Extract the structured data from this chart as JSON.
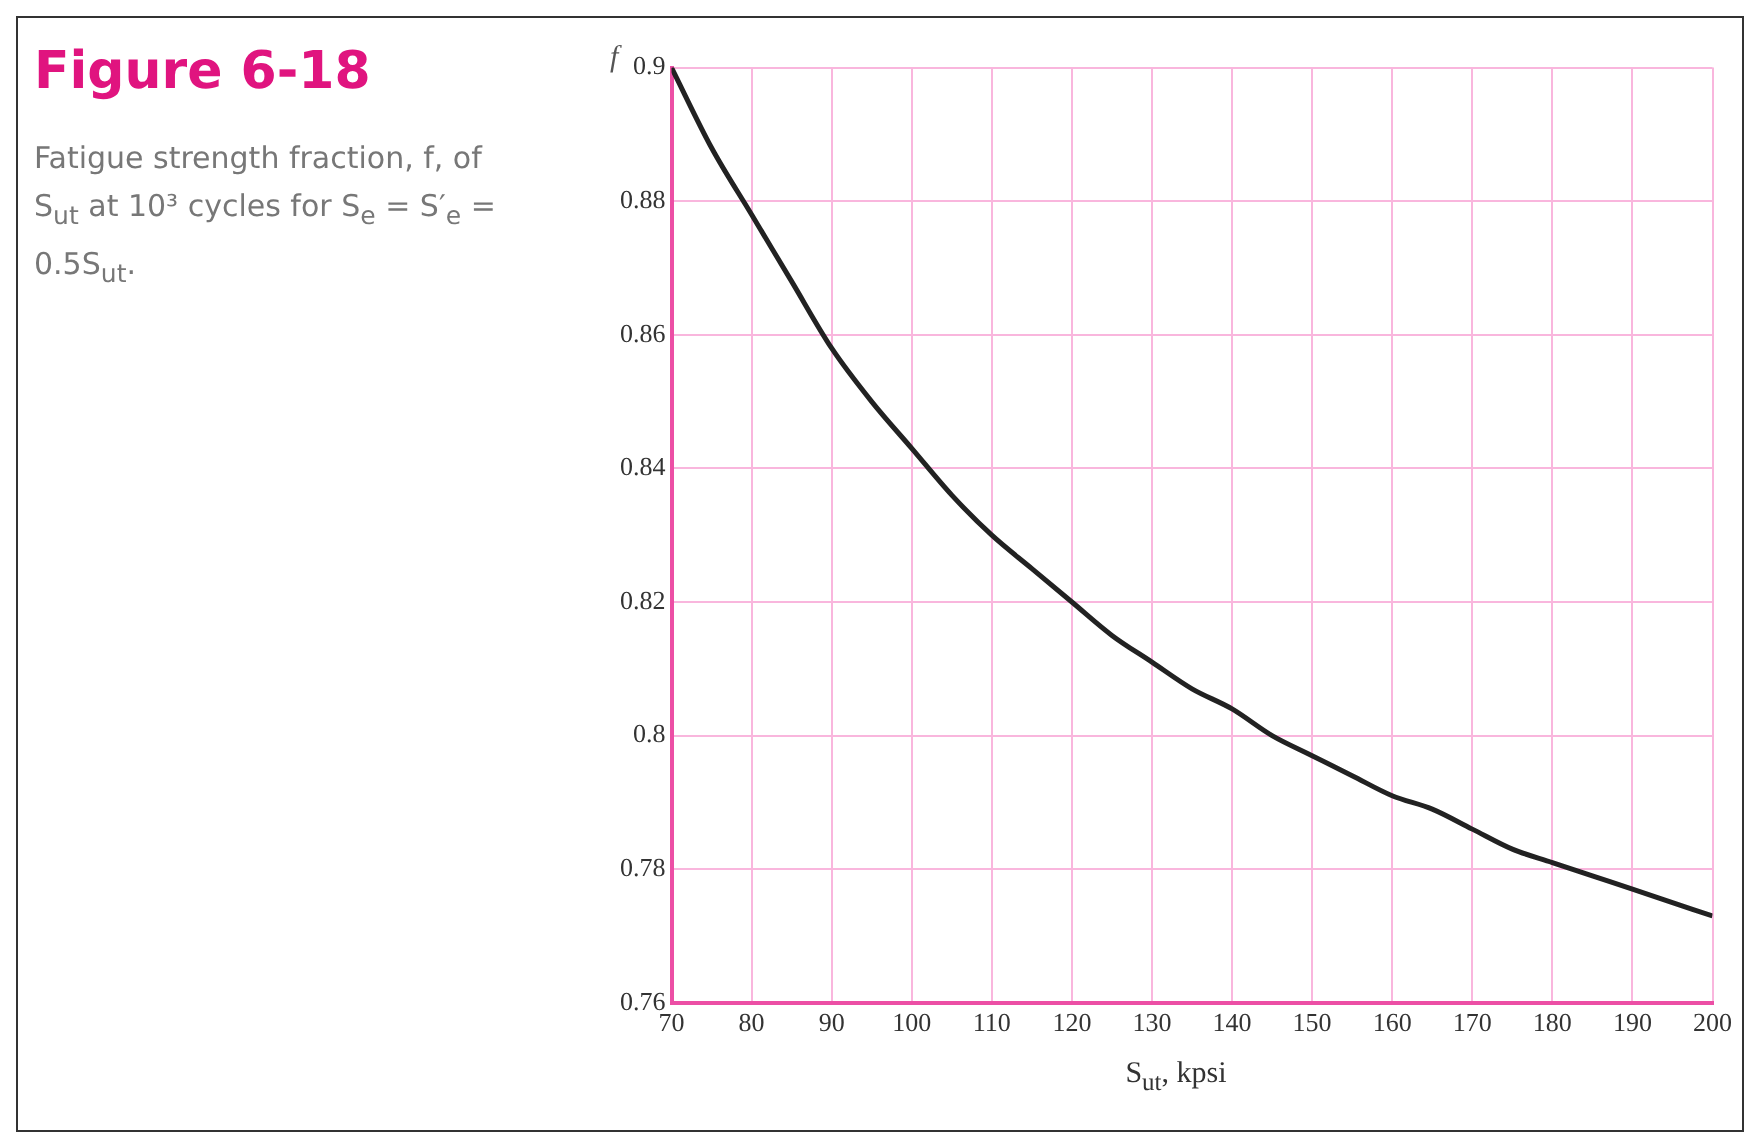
{
  "chart_data": {
    "type": "line",
    "title": "Figure 6-18",
    "annotations": [
      "Fatigue strength fraction, f, of S$_{ut}$ at 10³ cycles for S$_{e}$ = S′$_{e}$ = 0.5S$_{ut}$."
    ],
    "xlabel": "S$_{ut}$, kpsi",
    "ylabel": "f",
    "x": [
      70,
      75,
      80,
      85,
      90,
      95,
      100,
      105,
      110,
      115,
      120,
      125,
      130,
      135,
      140,
      145,
      150,
      155,
      160,
      165,
      170,
      175,
      180,
      185,
      190,
      195,
      200
    ],
    "series": [
      {
        "color": "#222222",
        "values": [
          0.9,
          0.888,
          0.878,
          0.868,
          0.858,
          0.85,
          0.843,
          0.836,
          0.83,
          0.825,
          0.82,
          0.815,
          0.811,
          0.807,
          0.804,
          0.8,
          0.797,
          0.794,
          0.791,
          0.789,
          0.786,
          0.783,
          0.781,
          0.779,
          0.777,
          0.775,
          0.773
        ]
      }
    ],
    "xlim": [
      70,
      200
    ],
    "xticks": [
      70,
      80,
      90,
      100,
      110,
      120,
      130,
      140,
      150,
      160,
      170,
      180,
      190,
      200
    ],
    "ylim": [
      0.76,
      0.9
    ],
    "yticks": [
      0.76,
      0.78,
      0.8,
      0.82,
      0.84,
      0.86,
      0.88,
      0.9
    ],
    "grid": true,
    "legend": false,
    "marker": "none",
    "line_style": "solid"
  }
}
